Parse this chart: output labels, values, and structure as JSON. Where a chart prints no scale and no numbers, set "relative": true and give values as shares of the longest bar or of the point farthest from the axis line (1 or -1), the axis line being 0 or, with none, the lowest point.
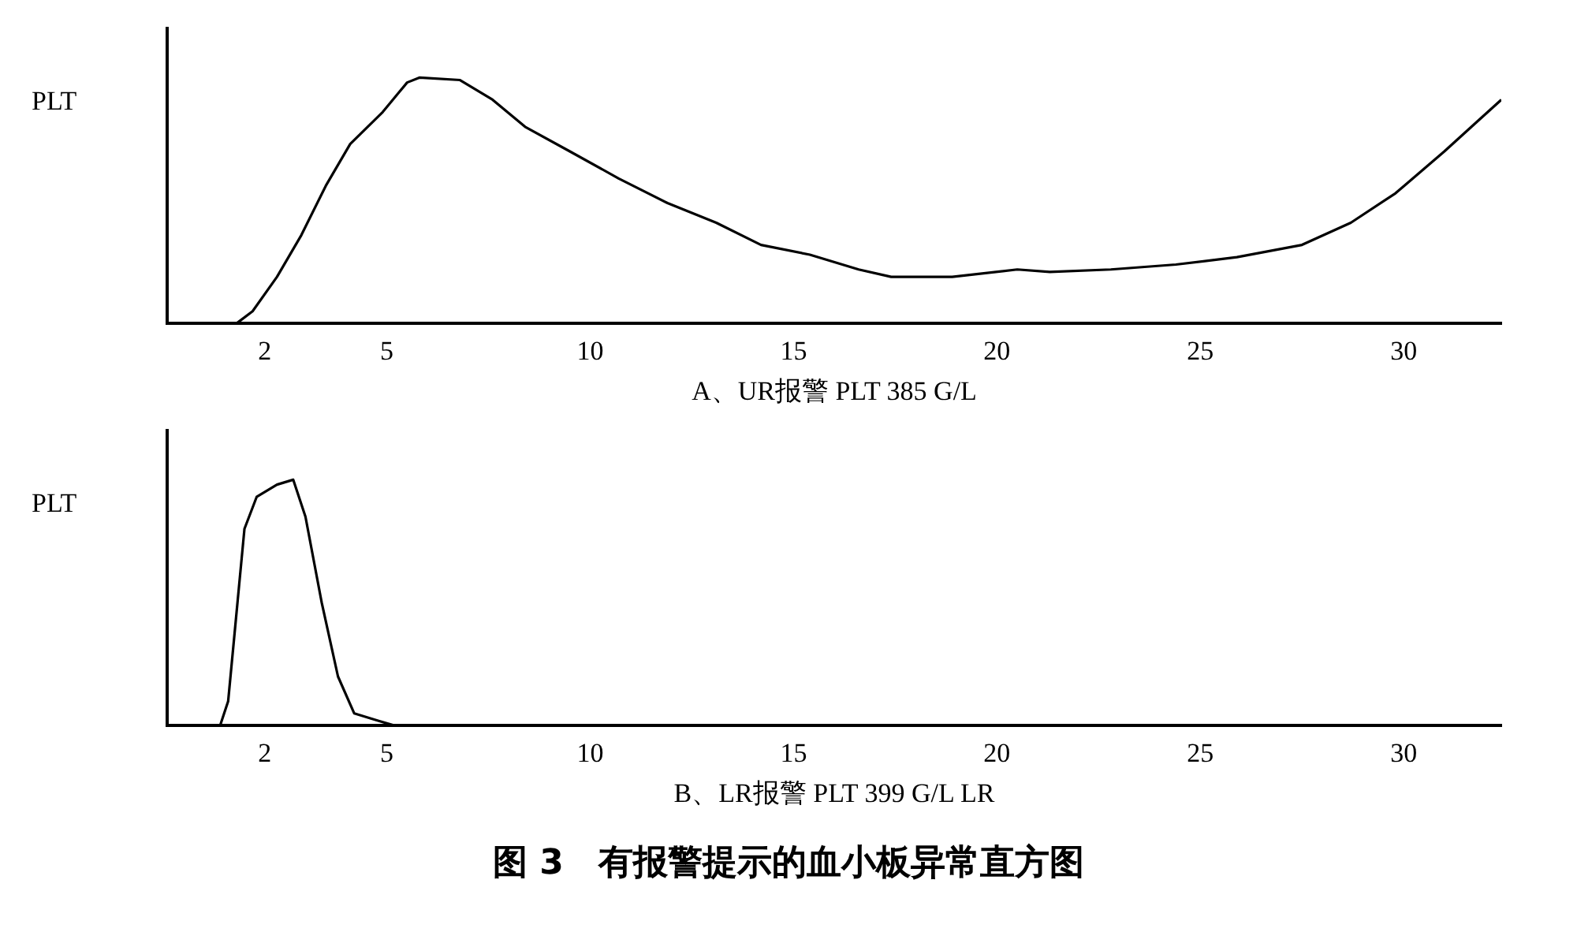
{
  "chart_data": [
    {
      "type": "line",
      "relative": true,
      "ylabel": "PLT",
      "xlabel": "A、UR报警 PLT 385 G/L",
      "xlim": [
        -0.4,
        32.4
      ],
      "xticks": [
        2,
        5,
        10,
        15,
        20,
        25,
        30
      ],
      "marker": "none",
      "series": [
        {
          "color": "#000000",
          "x": [
            1.3,
            1.7,
            2.3,
            2.9,
            3.5,
            4.1,
            4.9,
            5.5,
            5.8,
            6.8,
            7.6,
            8.4,
            9.5,
            10.7,
            11.9,
            13.1,
            14.2,
            15.4,
            16.6,
            17.4,
            18.9,
            20.5,
            21.3,
            22.8,
            24.4,
            25.9,
            27.5,
            28.7,
            29.8,
            31.0,
            31.8,
            32.4
          ],
          "values": [
            0,
            0.05,
            0.19,
            0.36,
            0.56,
            0.73,
            0.86,
            0.98,
            1.0,
            0.99,
            0.91,
            0.8,
            0.7,
            0.59,
            0.49,
            0.41,
            0.32,
            0.28,
            0.22,
            0.19,
            0.19,
            0.22,
            0.21,
            0.22,
            0.24,
            0.27,
            0.32,
            0.41,
            0.53,
            0.7,
            0.82,
            0.91
          ]
        }
      ]
    },
    {
      "type": "line",
      "relative": true,
      "ylabel": "PLT",
      "xlabel": "B、LR报警 PLT 399 G/L LR",
      "xlim": [
        -0.4,
        32.4
      ],
      "xticks": [
        2,
        5,
        10,
        15,
        20,
        25,
        30
      ],
      "marker": "none",
      "annotations": [
        "图 3　有报警提示的血小板异常直方图"
      ],
      "series": [
        {
          "color": "#000000",
          "x": [
            0.9,
            1.1,
            1.3,
            1.5,
            1.8,
            2.3,
            2.7,
            3.0,
            3.4,
            3.8,
            4.2,
            4.8,
            5.2
          ],
          "values": [
            0,
            0.1,
            0.45,
            0.8,
            0.93,
            0.98,
            1.0,
            0.85,
            0.5,
            0.2,
            0.05,
            0.02,
            0
          ]
        }
      ]
    }
  ]
}
